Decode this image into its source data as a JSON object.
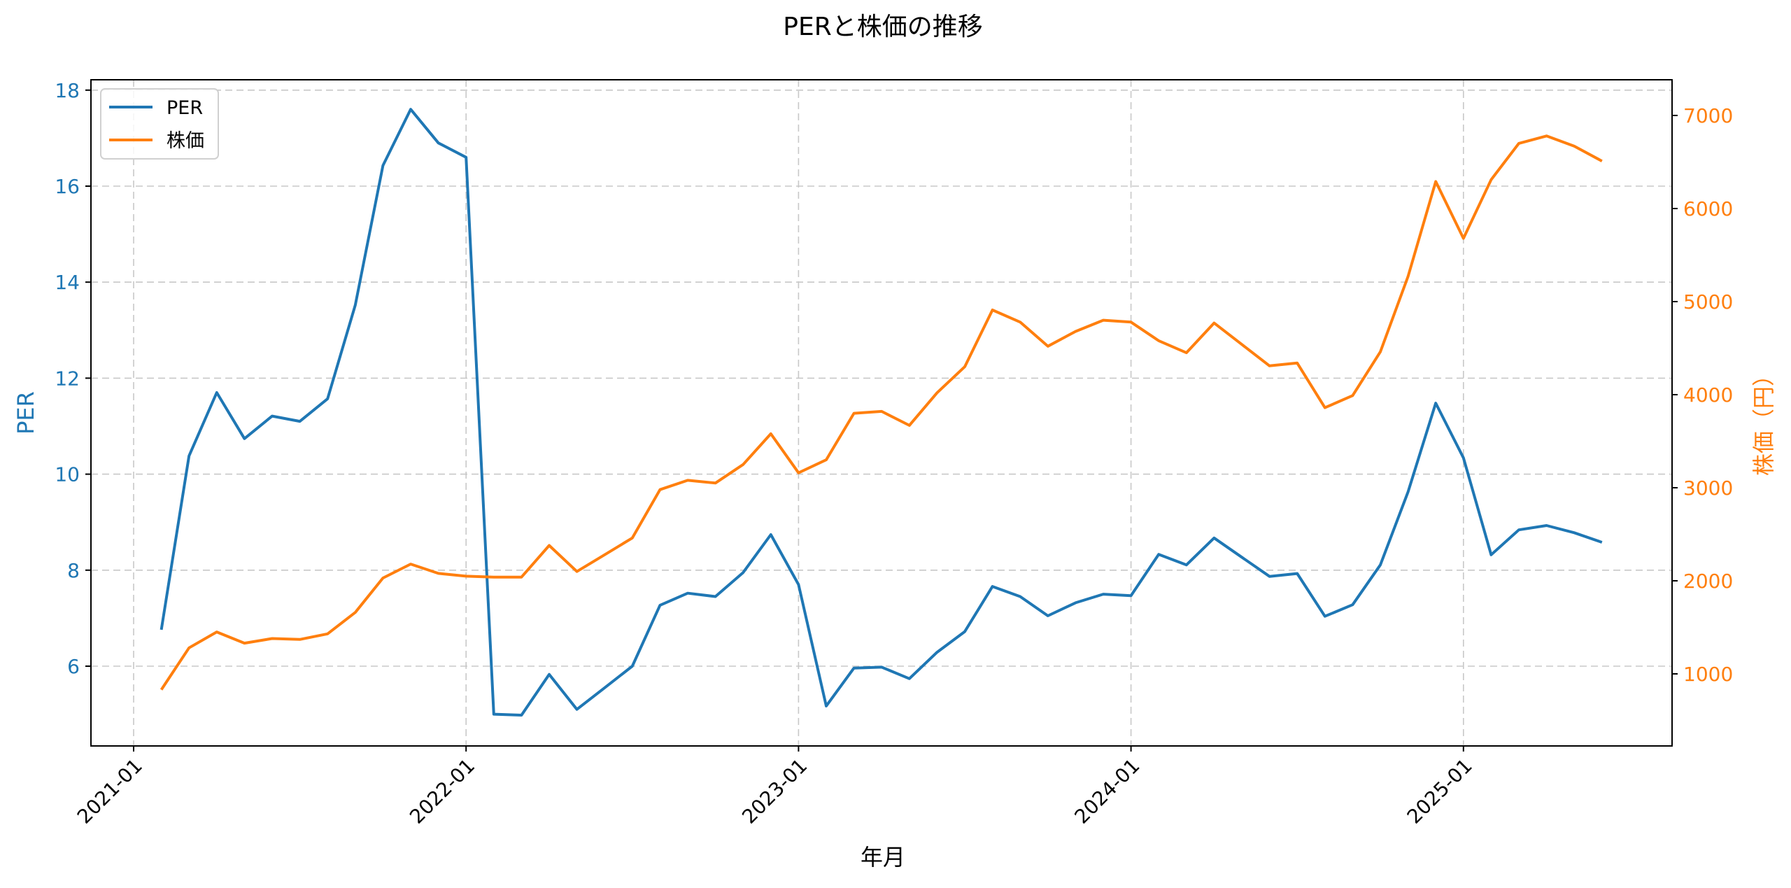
{
  "chart_data": {
    "type": "line",
    "title": "PERと株価の推移",
    "xlabel": "年月",
    "ylabel_left": "PER",
    "ylabel_right": "株価（円）",
    "x_tick_labels": [
      "2021-01",
      "2022-01",
      "2023-01",
      "2024-01",
      "2025-01"
    ],
    "y_left_ticks": [
      6,
      8,
      10,
      12,
      14,
      16,
      18
    ],
    "y_right_ticks": [
      1000,
      2000,
      3000,
      4000,
      5000,
      6000,
      7000
    ],
    "ylim_left": [
      4.4,
      18.3
    ],
    "ylim_right": [
      240,
      7420
    ],
    "grid": true,
    "legend_position": "upper left",
    "colors": {
      "PER": "#1f77b4",
      "株価": "#ff7f0e"
    },
    "x": [
      "2021-02",
      "2021-03",
      "2021-04",
      "2021-05",
      "2021-06",
      "2021-07",
      "2021-08",
      "2021-09",
      "2021-10",
      "2021-11",
      "2021-12",
      "2022-01",
      "2022-02",
      "2022-03",
      "2022-04",
      "2022-05",
      "2022-06",
      "2022-07",
      "2022-08",
      "2022-09",
      "2022-10",
      "2022-11",
      "2022-12",
      "2023-01",
      "2023-02",
      "2023-03",
      "2023-04",
      "2023-05",
      "2023-06",
      "2023-07",
      "2023-08",
      "2023-09",
      "2023-10",
      "2023-11",
      "2023-12",
      "2024-01",
      "2024-02",
      "2024-03",
      "2024-04",
      "2024-05",
      "2024-06",
      "2024-07",
      "2024-08",
      "2024-09",
      "2024-10",
      "2024-11",
      "2024-12",
      "2025-01",
      "2025-02",
      "2025-03",
      "2025-04",
      "2025-05",
      "2025-06"
    ],
    "series": [
      {
        "name": "PER",
        "axis": "left",
        "values": [
          6.76,
          10.38,
          11.7,
          10.74,
          11.21,
          11.1,
          11.57,
          13.52,
          16.43,
          17.6,
          16.9,
          16.6,
          5.0,
          4.98,
          5.83,
          5.1,
          5.55,
          6.0,
          7.27,
          7.52,
          7.45,
          7.95,
          8.74,
          7.7,
          5.17,
          5.96,
          5.98,
          5.74,
          6.29,
          6.72,
          7.66,
          7.45,
          7.05,
          7.32,
          7.5,
          7.47,
          8.33,
          8.11,
          8.67,
          8.27,
          7.87,
          7.93,
          7.04,
          7.28,
          8.11,
          9.63,
          11.48,
          10.34,
          8.32,
          8.84,
          8.93,
          8.78,
          8.58
        ]
      },
      {
        "name": "株価",
        "axis": "right",
        "values": [
          830,
          1280,
          1450,
          1330,
          1380,
          1370,
          1430,
          1660,
          2030,
          2180,
          2080,
          2050,
          2040,
          2040,
          2380,
          2100,
          2280,
          2460,
          2980,
          3080,
          3050,
          3250,
          3580,
          3160,
          3300,
          3800,
          3820,
          3670,
          4020,
          4300,
          4910,
          4780,
          4520,
          4680,
          4800,
          4780,
          4580,
          4450,
          4770,
          4540,
          4310,
          4340,
          3860,
          3990,
          4460,
          5270,
          6290,
          5680,
          6310,
          6700,
          6780,
          6670,
          6510
        ]
      }
    ]
  },
  "legend": {
    "items": [
      "PER",
      "株価"
    ]
  }
}
